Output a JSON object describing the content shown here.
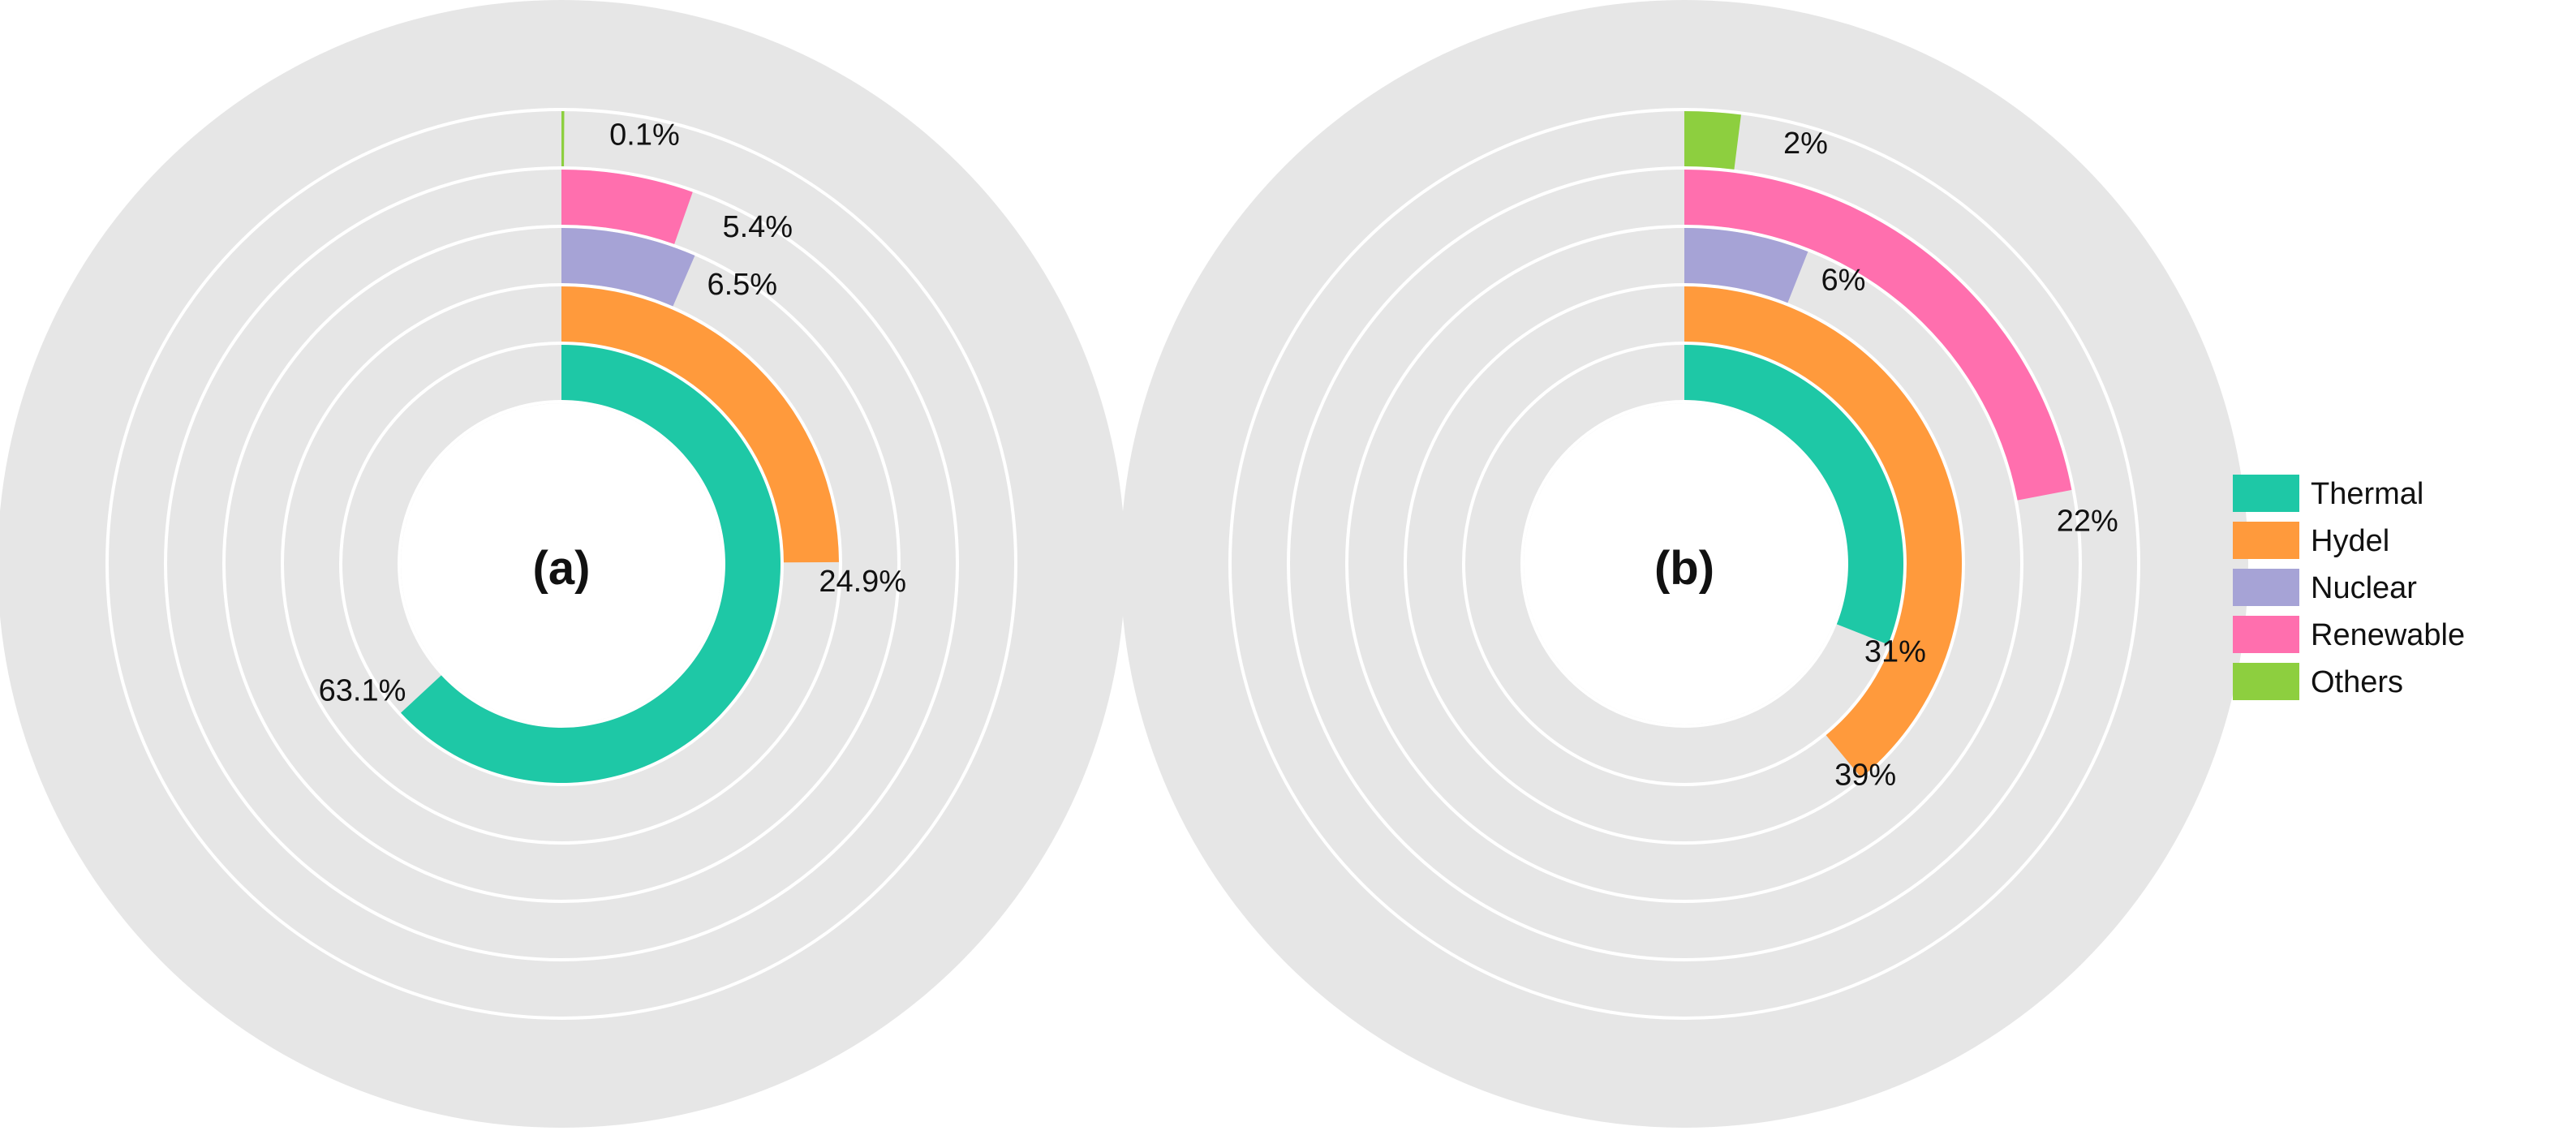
{
  "chart_data": [
    {
      "type": "radial_bar",
      "panel_label": "(a)",
      "track_color": "#e6e6e6",
      "series": [
        {
          "name": "Thermal",
          "value": 63.1,
          "label": "63.1%"
        },
        {
          "name": "Hydel",
          "value": 24.9,
          "label": "24.9%"
        },
        {
          "name": "Nuclear",
          "value": 6.5,
          "label": "6.5%"
        },
        {
          "name": "Renewable",
          "value": 5.4,
          "label": "5.4%"
        },
        {
          "name": "Others",
          "value": 0.1,
          "label": "0.1%"
        }
      ]
    },
    {
      "type": "radial_bar",
      "panel_label": "(b)",
      "track_color": "#e6e6e6",
      "series": [
        {
          "name": "Thermal",
          "value": 31,
          "label": "31%"
        },
        {
          "name": "Hydel",
          "value": 39,
          "label": "39%"
        },
        {
          "name": "Nuclear",
          "value": 6,
          "label": "6%"
        },
        {
          "name": "Renewable",
          "value": 22,
          "label": "22%"
        },
        {
          "name": "Others",
          "value": 2,
          "label": "2%"
        }
      ]
    }
  ],
  "legend": {
    "position": "right",
    "items": [
      {
        "name": "Thermal",
        "color": "#1ec8a6"
      },
      {
        "name": "Hydel",
        "color": "#ff9a3c"
      },
      {
        "name": "Nuclear",
        "color": "#a6a3d6"
      },
      {
        "name": "Renewable",
        "color": "#ff6fae"
      },
      {
        "name": "Others",
        "color": "#8dcf3f"
      }
    ]
  }
}
